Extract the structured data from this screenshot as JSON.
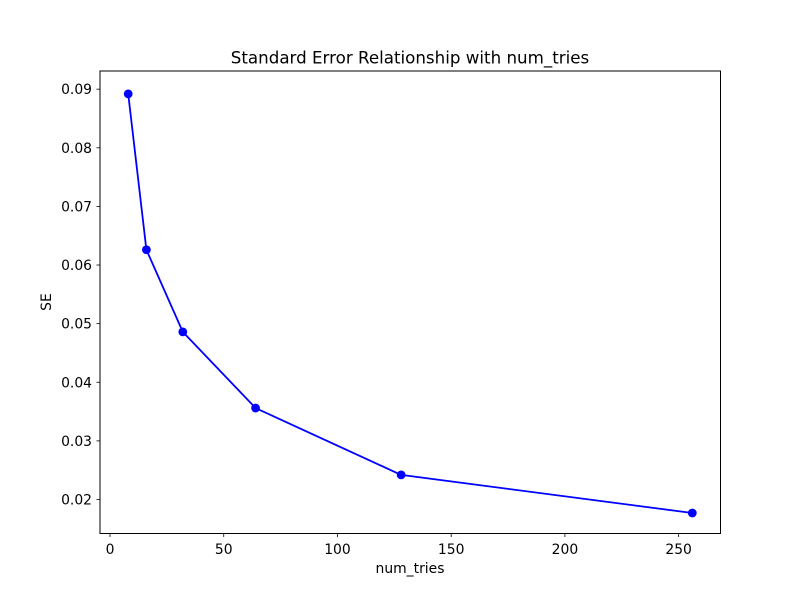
{
  "figure": {
    "background": "#ffffff"
  },
  "chart_data": {
    "type": "line",
    "title": "Standard Error Relationship with num_tries",
    "xlabel": "num_tries",
    "ylabel": "SE",
    "x": [
      8,
      16,
      32,
      64,
      128,
      256
    ],
    "y": [
      0.0892,
      0.0626,
      0.0486,
      0.0356,
      0.0242,
      0.0177
    ],
    "xticks": [
      0,
      50,
      100,
      150,
      200,
      250
    ],
    "yticks": [
      0.02,
      0.03,
      0.04,
      0.05,
      0.06,
      0.07,
      0.08,
      0.09
    ],
    "xlim": [
      -4.4,
      268.4
    ],
    "ylim": [
      0.0142,
      0.0931
    ],
    "line_color": "#0000ff",
    "marker": "o",
    "marker_color": "#0000ff",
    "grid": false,
    "legend_position": "none",
    "spine_color": "#000000"
  }
}
